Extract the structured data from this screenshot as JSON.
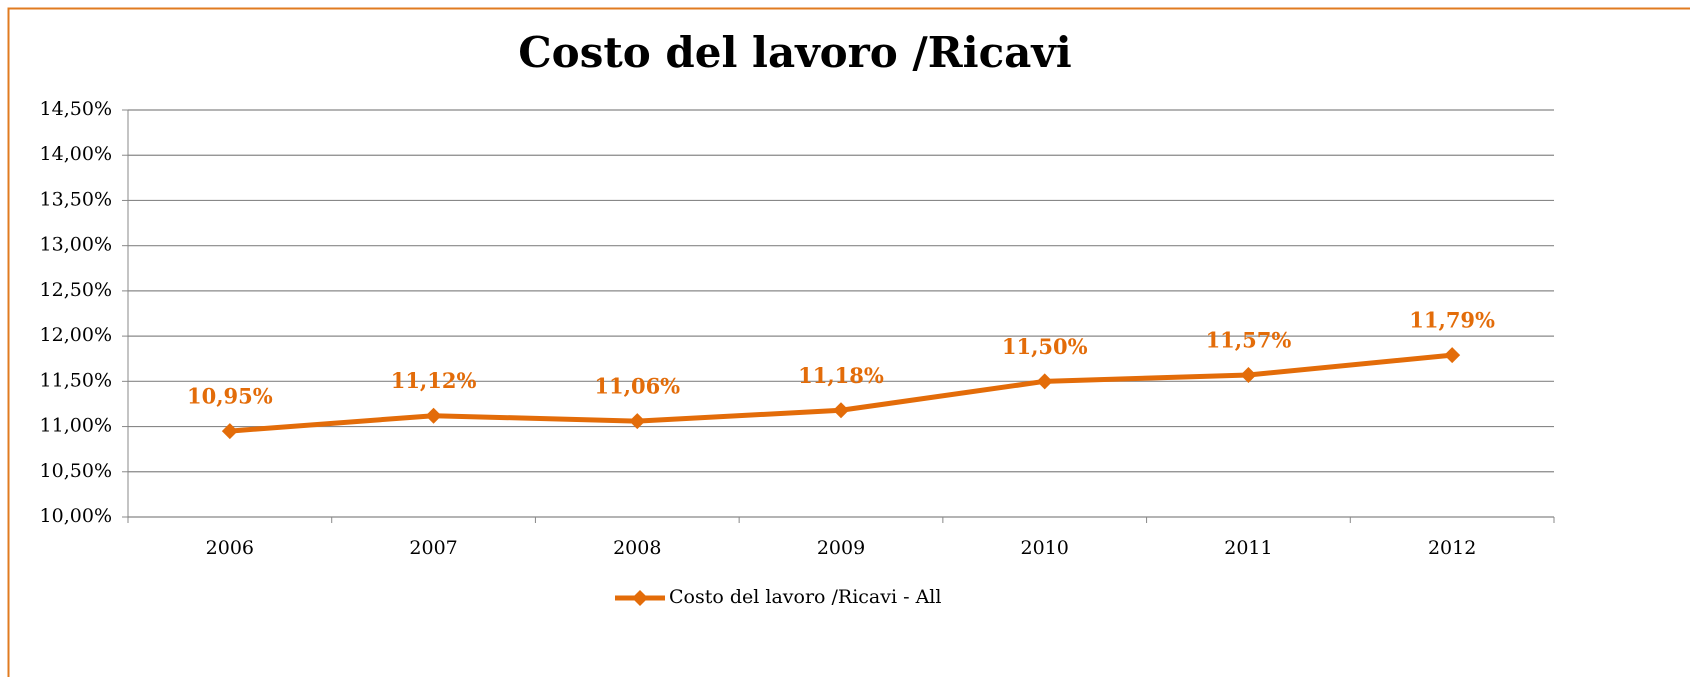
{
  "chart_data": {
    "type": "line",
    "title": "Costo del lavoro /Ricavi",
    "categories": [
      "2006",
      "2007",
      "2008",
      "2009",
      "2010",
      "2011",
      "2012"
    ],
    "series": [
      {
        "name": "Costo del lavoro /Ricavi - All",
        "color": "#e36c09",
        "values": [
          10.95,
          11.12,
          11.06,
          11.18,
          11.5,
          11.57,
          11.79
        ],
        "value_labels": [
          "10,95%",
          "11,12%",
          "11,06%",
          "11,18%",
          "11,50%",
          "11,57%",
          "11,79%"
        ]
      }
    ],
    "ylim": [
      10,
      14.5
    ],
    "yticks": [
      {
        "value": 10,
        "label": "10,00%"
      },
      {
        "value": 10.5,
        "label": "10,50%"
      },
      {
        "value": 11,
        "label": "11,00%"
      },
      {
        "value": 11.5,
        "label": "11,50%"
      },
      {
        "value": 12,
        "label": "12,00%"
      },
      {
        "value": 12.5,
        "label": "12,50%"
      },
      {
        "value": 13,
        "label": "13,00%"
      },
      {
        "value": 13.5,
        "label": "13,50%"
      },
      {
        "value": 14,
        "label": "14,00%"
      },
      {
        "value": 14.5,
        "label": "14,50%"
      }
    ],
    "grid": true,
    "legend": "bottom"
  }
}
